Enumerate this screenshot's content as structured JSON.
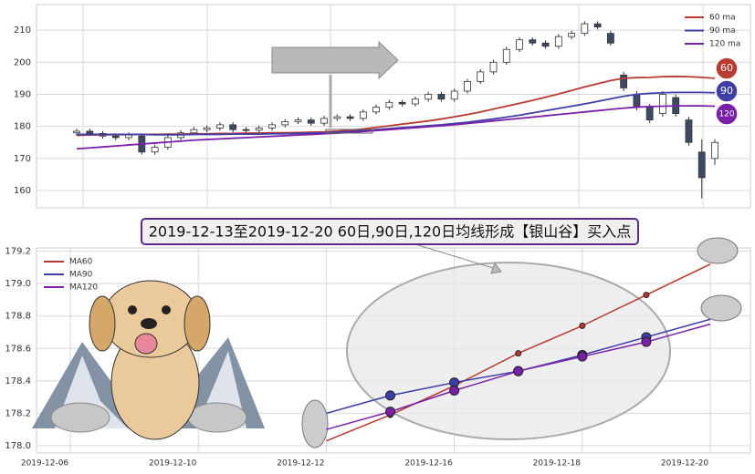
{
  "chart_data": [
    {
      "type": "candlestick",
      "ylim": [
        154.6,
        218
      ],
      "yticks": [
        160,
        170,
        180,
        190,
        200,
        210
      ],
      "up_color": "#ffffff",
      "down_color": "#3d4a66",
      "edge_color": "#333333",
      "open": [
        178,
        178.5,
        177.8,
        177,
        176.5,
        177,
        172,
        173.5,
        176.5,
        178,
        179,
        179.5,
        180.5,
        179,
        178.8,
        179.5,
        180.5,
        181.5,
        182,
        181,
        182.5,
        183,
        182.5,
        184.5,
        186,
        187.5,
        187,
        188.5,
        190,
        188.5,
        191,
        194,
        197,
        200,
        204,
        207,
        206,
        205,
        208,
        209,
        212,
        209,
        196,
        190,
        186,
        184,
        189,
        182,
        172,
        170
      ],
      "high": [
        179.3,
        179.3,
        178.6,
        177.8,
        178.1,
        177.8,
        174.3,
        177.3,
        178.8,
        179.8,
        180.3,
        181.3,
        181.3,
        179.8,
        180.3,
        181.3,
        182.3,
        182.8,
        182.8,
        183.3,
        183.8,
        183.8,
        185.3,
        186.8,
        188.3,
        188.3,
        189.3,
        190.8,
        190.8,
        191.8,
        194.8,
        197.8,
        200.8,
        204.8,
        207.8,
        207.8,
        206.8,
        208.8,
        209.8,
        212.8,
        212.8,
        209.8,
        197,
        191,
        187,
        191,
        190,
        183,
        176,
        176
      ],
      "low": [
        177.2,
        177,
        176.2,
        175.7,
        175.7,
        171.2,
        171.2,
        172.7,
        175.7,
        177.2,
        178.2,
        178.7,
        178.2,
        178,
        178,
        178.7,
        179.7,
        180.7,
        180.2,
        180.2,
        181.7,
        181.7,
        181.7,
        183.7,
        185.2,
        186.2,
        186.2,
        187.7,
        187.7,
        187.7,
        190.2,
        193.2,
        196.2,
        199.2,
        203.2,
        205.2,
        204.2,
        204.2,
        207.2,
        208.2,
        210.2,
        205.2,
        191,
        185,
        181,
        183,
        183,
        174,
        157.5,
        168
      ],
      "close": [
        178.5,
        177.8,
        177,
        176.5,
        177.3,
        172,
        173.5,
        176.5,
        178,
        179,
        179.5,
        180.5,
        179,
        178.8,
        179.5,
        180.5,
        181.5,
        182,
        181,
        182.5,
        183,
        182.5,
        184.5,
        186,
        187.5,
        187,
        188.5,
        190,
        188.5,
        191,
        194,
        197,
        200,
        204,
        207,
        206,
        205,
        208,
        209,
        212,
        211,
        206,
        192,
        186,
        182,
        190,
        184,
        175,
        164,
        175
      ],
      "series": [
        {
          "name": "60 ma",
          "color": "#b83a30",
          "values": [
            177.2,
            177.3,
            177.4,
            177.4,
            177.5,
            177.5,
            177.5,
            177.6,
            177.6,
            177.7,
            177.7,
            177.8,
            177.8,
            177.9,
            177.9,
            178,
            178,
            178.1,
            178.2,
            178.3,
            178.5,
            178.8,
            179.2,
            179.7,
            180.2,
            180.7,
            181.2,
            181.7,
            182.3,
            183,
            183.7,
            184.5,
            185.4,
            186.3,
            187.2,
            188.1,
            189.1,
            190.1,
            191.2,
            192.3,
            193.3,
            194.3,
            195,
            195.2,
            195.3,
            195.5,
            195.6,
            195.5,
            195.3,
            195
          ]
        },
        {
          "name": "90 ma",
          "color": "#3e3ea8",
          "values": [
            177.5,
            177.5,
            177.5,
            177.5,
            177.5,
            177.5,
            177.4,
            177.4,
            177.4,
            177.5,
            177.5,
            177.5,
            177.6,
            177.6,
            177.6,
            177.7,
            177.7,
            177.8,
            177.9,
            178,
            178.2,
            178.4,
            178.7,
            179,
            179.3,
            179.6,
            179.9,
            180.2,
            180.5,
            180.9,
            181.3,
            181.8,
            182.3,
            182.9,
            183.5,
            184.2,
            184.9,
            185.6,
            186.3,
            187,
            187.8,
            188.6,
            189.4,
            190,
            190.3,
            190.5,
            190.6,
            190.6,
            190.6,
            190.5
          ]
        },
        {
          "name": "120 ma",
          "color": "#7a1fa8",
          "values": [
            173,
            173.3,
            173.6,
            173.9,
            174.2,
            174.5,
            174.8,
            175.1,
            175.4,
            175.7,
            175.9,
            176.1,
            176.3,
            176.5,
            176.7,
            176.9,
            177.1,
            177.3,
            177.5,
            177.7,
            177.9,
            178.1,
            178.4,
            178.7,
            179,
            179.3,
            179.6,
            179.9,
            180.2,
            180.5,
            180.9,
            181.3,
            181.7,
            182.1,
            182.5,
            182.9,
            183.3,
            183.7,
            184.1,
            184.5,
            184.9,
            185.3,
            185.7,
            186,
            186.2,
            186.3,
            186.4,
            186.4,
            186.4,
            186.3
          ]
        }
      ],
      "badges": [
        "60",
        "90",
        "120"
      ],
      "annotation": "【银山谷】买入点",
      "grid": true,
      "legend": "upper right"
    },
    {
      "type": "line",
      "title": "2019-12-13至2019-12-20 60日,90日,120日均线形成【银山谷】买入点",
      "categories": [
        "2019-12-06",
        null,
        "2019-12-10",
        null,
        "2019-12-12",
        null,
        "2019-12-16",
        null,
        "2019-12-18",
        null,
        "2019-12-20"
      ],
      "ylim": [
        177.955,
        179.22
      ],
      "yticks": [
        {
          "value": 178,
          "label": "178.0"
        },
        178.2,
        178.4,
        178.6,
        178.8,
        {
          "value": 179,
          "label": "179.0"
        },
        179.2
      ],
      "series": [
        {
          "name": "MA60",
          "color": "#b83a30",
          "values": [
            null,
            null,
            null,
            null,
            178.03,
            178.19,
            178.37,
            178.57,
            178.74,
            178.93,
            179.12
          ]
        },
        {
          "name": "MA90",
          "color": "#3e3ea8",
          "values": [
            null,
            null,
            null,
            null,
            178.2,
            178.31,
            178.39,
            178.46,
            178.56,
            178.67,
            178.78
          ]
        },
        {
          "name": "MA120",
          "color": "#7a1fa8",
          "values": [
            null,
            null,
            null,
            null,
            178.1,
            178.21,
            178.34,
            178.46,
            178.55,
            178.64,
            178.75
          ]
        }
      ],
      "grid": true,
      "legend": "upper left"
    }
  ]
}
